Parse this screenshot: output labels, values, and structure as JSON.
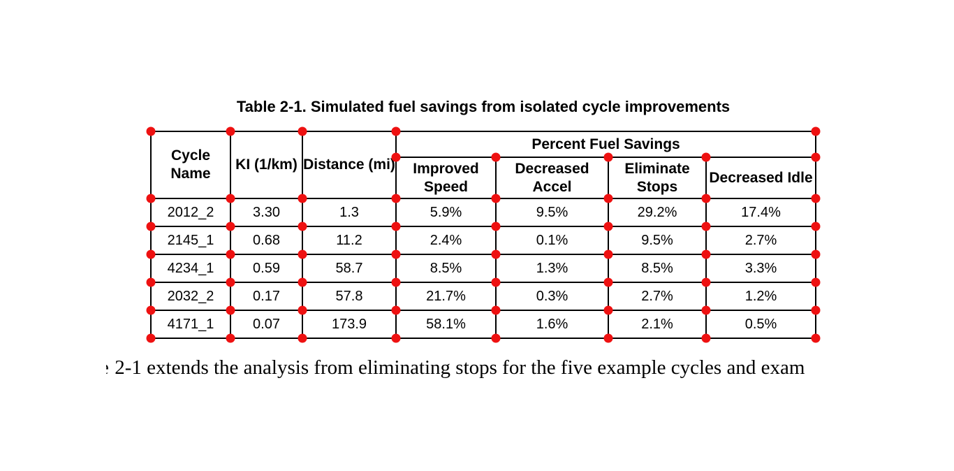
{
  "page": {
    "title": "Table 2-1. Simulated fuel savings from isolated cycle improvements",
    "caption_fragment": "e",
    "caption_text": "2-1 extends the analysis from eliminating stops for the five example cycles and exam"
  },
  "table": {
    "columns": [
      "Cycle Name",
      "KI (1/km)",
      "Distance (mi)"
    ],
    "group_header": "Percent Fuel Savings",
    "sub_columns": [
      "Improved Speed",
      "Decreased Accel",
      "Eliminate Stops",
      "Decreased Idle"
    ],
    "rows": [
      [
        "2012_2",
        "3.30",
        "1.3",
        "5.9%",
        "9.5%",
        "29.2%",
        "17.4%"
      ],
      [
        "2145_1",
        "0.68",
        "11.2",
        "2.4%",
        "0.1%",
        "9.5%",
        "2.7%"
      ],
      [
        "4234_1",
        "0.59",
        "58.7",
        "8.5%",
        "1.3%",
        "8.5%",
        "3.3%"
      ],
      [
        "2032_2",
        "0.17",
        "57.8",
        "21.7%",
        "0.3%",
        "2.7%",
        "1.2%"
      ],
      [
        "4171_1",
        "0.07",
        "173.9",
        "58.1%",
        "1.6%",
        "2.1%",
        "0.5%"
      ]
    ]
  },
  "overlay": {
    "corner_marker_color": "#ee1111"
  },
  "colors": {
    "text": "#000000",
    "background": "#ffffff",
    "table_border": "#000000"
  }
}
